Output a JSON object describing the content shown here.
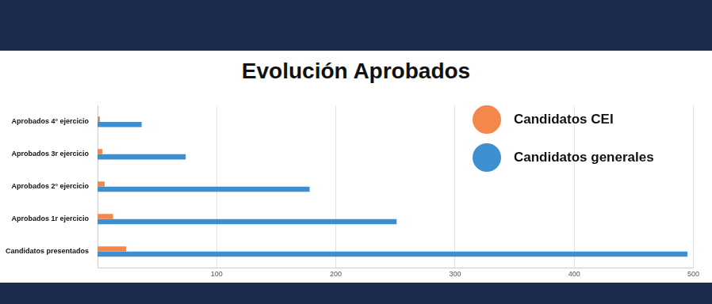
{
  "chart_data": {
    "type": "bar",
    "title": "Evolución Aprobados",
    "orientation": "horizontal",
    "categories": [
      "Aprobados 4° ejercicio",
      "Aprobados 3r ejercicio",
      "Aprobados 2° ejercicio",
      "Aprobados 1r ejercicio",
      "Candidatos presentados"
    ],
    "series": [
      {
        "name": "Candidatos CEI",
        "color": "#f4874b",
        "values": [
          2,
          4,
          6,
          13,
          24
        ]
      },
      {
        "name": "Candidatos generales",
        "color": "#3d8fcf",
        "values": [
          37,
          74,
          178,
          251,
          495
        ]
      }
    ],
    "xlim": [
      0,
      500
    ],
    "xticks": [
      100,
      200,
      300,
      400,
      500
    ],
    "grid": true,
    "legend": "top-right"
  }
}
